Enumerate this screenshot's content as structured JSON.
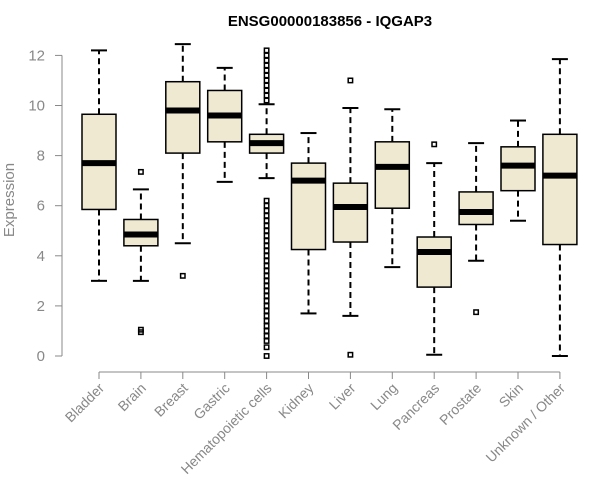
{
  "chart_data": {
    "type": "box",
    "title": "ENSG00000183856 - IQGAP3",
    "ylabel": "Expression",
    "ylim": [
      0,
      12.5
    ],
    "yticks": [
      0,
      2,
      4,
      6,
      8,
      10,
      12
    ],
    "categories": [
      "Bladder",
      "Brain",
      "Breast",
      "Gastric",
      "Hematopoietic cells",
      "Kidney",
      "Liver",
      "Lung",
      "Pancreas",
      "Prostate",
      "Skin",
      "Unknown / Other"
    ],
    "boxes": [
      {
        "whisker_low": 3.0,
        "q1": 5.85,
        "median": 7.7,
        "q3": 9.65,
        "whisker_high": 12.2,
        "outliers": []
      },
      {
        "whisker_low": 3.0,
        "q1": 4.4,
        "median": 4.85,
        "q3": 5.45,
        "whisker_high": 6.65,
        "outliers": [
          7.35,
          1.05,
          0.95
        ]
      },
      {
        "whisker_low": 4.5,
        "q1": 8.1,
        "median": 9.8,
        "q3": 10.95,
        "whisker_high": 12.45,
        "outliers": [
          3.2
        ]
      },
      {
        "whisker_low": 6.95,
        "q1": 8.55,
        "median": 9.6,
        "q3": 10.6,
        "whisker_high": 11.5,
        "outliers": []
      },
      {
        "whisker_low": 7.1,
        "q1": 8.1,
        "median": 8.5,
        "q3": 8.85,
        "whisker_high": 10.05,
        "outliers": [
          12.2,
          12.0,
          11.8,
          11.6,
          11.4,
          11.2,
          11.0,
          10.8,
          10.6,
          10.4,
          10.2,
          6.2,
          6.0,
          5.8,
          5.6,
          5.4,
          5.2,
          5.0,
          4.8,
          4.6,
          4.4,
          4.2,
          4.0,
          3.8,
          3.6,
          3.4,
          3.2,
          3.0,
          2.8,
          2.6,
          2.4,
          2.2,
          2.0,
          1.8,
          1.6,
          1.4,
          1.2,
          1.0,
          0.8,
          0.6,
          0.35,
          0.0
        ]
      },
      {
        "whisker_low": 1.7,
        "q1": 4.25,
        "median": 7.0,
        "q3": 7.7,
        "whisker_high": 8.9,
        "outliers": []
      },
      {
        "whisker_low": 1.6,
        "q1": 4.55,
        "median": 5.95,
        "q3": 6.9,
        "whisker_high": 9.9,
        "outliers": [
          11.0,
          0.05
        ]
      },
      {
        "whisker_low": 3.55,
        "q1": 5.9,
        "median": 7.55,
        "q3": 8.55,
        "whisker_high": 9.85,
        "outliers": []
      },
      {
        "whisker_low": 0.05,
        "q1": 2.75,
        "median": 4.15,
        "q3": 4.75,
        "whisker_high": 7.7,
        "outliers": [
          8.45
        ]
      },
      {
        "whisker_low": 3.8,
        "q1": 5.25,
        "median": 5.75,
        "q3": 6.55,
        "whisker_high": 8.5,
        "outliers": [
          1.75
        ]
      },
      {
        "whisker_low": 5.4,
        "q1": 6.6,
        "median": 7.6,
        "q3": 8.35,
        "whisker_high": 9.4,
        "outliers": []
      },
      {
        "whisker_low": 0.0,
        "q1": 4.45,
        "median": 7.2,
        "q3": 8.85,
        "whisker_high": 11.85,
        "outliers": []
      }
    ]
  }
}
